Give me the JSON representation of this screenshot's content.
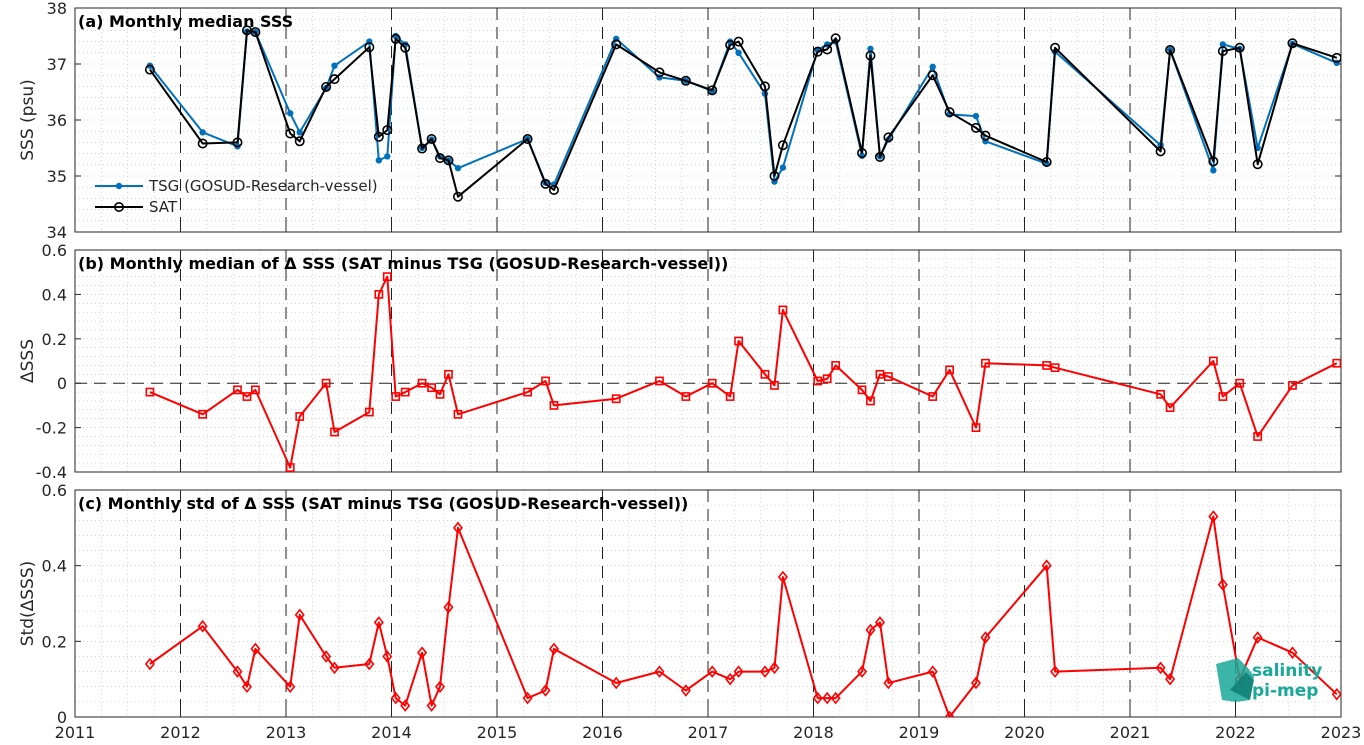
{
  "chart_data": [
    {
      "type": "line",
      "title": "(a) Monthly median SSS",
      "ylabel": "SSS (psu)",
      "ylim": [
        34,
        38
      ],
      "yticks": [
        34,
        35,
        36,
        37,
        38
      ],
      "xlim": [
        2011,
        2023
      ],
      "grid": true,
      "legend": "lower-left",
      "series": [
        {
          "name": "TSG (GOSUD-Research-vessel)",
          "color": "#0072BD",
          "marker": "dot",
          "x": [
            2011.71,
            2012.21,
            2012.54,
            2012.63,
            2012.71,
            2013.04,
            2013.13,
            2013.38,
            2013.46,
            2013.79,
            2013.88,
            2013.96,
            2014.04,
            2014.13,
            2014.29,
            2014.38,
            2014.46,
            2014.54,
            2014.63,
            2015.29,
            2015.46,
            2015.54,
            2016.13,
            2016.54,
            2016.79,
            2017.04,
            2017.21,
            2017.29,
            2017.54,
            2017.63,
            2017.71,
            2018.04,
            2018.13,
            2018.21,
            2018.46,
            2018.54,
            2018.63,
            2018.71,
            2019.13,
            2019.29,
            2019.54,
            2019.63,
            2020.21,
            2020.29,
            2021.29,
            2021.38,
            2021.79,
            2021.88,
            2022.04,
            2022.21,
            2022.54,
            2022.96
          ],
          "values": [
            36.97,
            35.78,
            35.53,
            37.58,
            37.57,
            36.12,
            35.78,
            36.57,
            36.97,
            37.4,
            35.28,
            35.35,
            37.5,
            37.35,
            35.5,
            35.65,
            35.35,
            35.28,
            35.14,
            35.66,
            34.88,
            34.85,
            37.45,
            36.76,
            36.7,
            36.52,
            37.4,
            37.2,
            36.47,
            34.9,
            35.15,
            37.25,
            37.35,
            37.4,
            35.36,
            37.27,
            35.35,
            35.65,
            36.95,
            36.1,
            36.07,
            35.62,
            35.22,
            37.22,
            35.55,
            37.25,
            35.1,
            37.35,
            37.27,
            35.5,
            37.36,
            37.02
          ]
        },
        {
          "name": "SAT",
          "color": "#000000",
          "marker": "circle",
          "x": [
            2011.71,
            2012.21,
            2012.54,
            2012.63,
            2012.71,
            2013.04,
            2013.13,
            2013.38,
            2013.46,
            2013.79,
            2013.88,
            2013.96,
            2014.04,
            2014.13,
            2014.29,
            2014.38,
            2014.46,
            2014.54,
            2014.63,
            2015.29,
            2015.46,
            2015.54,
            2016.13,
            2016.54,
            2016.79,
            2017.04,
            2017.21,
            2017.29,
            2017.54,
            2017.63,
            2017.71,
            2018.04,
            2018.13,
            2018.21,
            2018.46,
            2018.54,
            2018.63,
            2018.71,
            2019.13,
            2019.29,
            2019.54,
            2019.63,
            2020.21,
            2020.29,
            2021.29,
            2021.38,
            2021.79,
            2021.88,
            2022.04,
            2022.21,
            2022.54,
            2022.96
          ],
          "values": [
            36.9,
            35.58,
            35.6,
            37.6,
            37.57,
            35.76,
            35.62,
            36.59,
            36.73,
            37.3,
            35.7,
            35.82,
            37.45,
            37.29,
            35.49,
            35.66,
            35.32,
            35.28,
            34.63,
            35.66,
            34.86,
            34.75,
            37.35,
            36.85,
            36.7,
            36.53,
            37.34,
            37.4,
            36.6,
            35.0,
            35.55,
            37.22,
            37.26,
            37.46,
            35.41,
            37.15,
            35.34,
            35.69,
            36.8,
            36.14,
            35.86,
            35.72,
            35.25,
            37.29,
            35.44,
            37.25,
            35.26,
            37.23,
            37.29,
            35.21,
            37.37,
            37.11
          ]
        }
      ]
    },
    {
      "type": "line",
      "title": "(b) Monthly median of Δ SSS (SAT minus TSG (GOSUD-Research-vessel))",
      "ylabel": "ΔSSS",
      "ylim": [
        -0.4,
        0.6
      ],
      "yticks": [
        -0.4,
        -0.2,
        0,
        0.2,
        0.4,
        0.6
      ],
      "xlim": [
        2011,
        2023
      ],
      "grid": true,
      "zero_line": true,
      "series": [
        {
          "color": "#FF0000",
          "marker": "square",
          "x": [
            2011.71,
            2012.21,
            2012.54,
            2012.63,
            2012.71,
            2013.04,
            2013.13,
            2013.38,
            2013.46,
            2013.79,
            2013.88,
            2013.96,
            2014.04,
            2014.13,
            2014.29,
            2014.38,
            2014.46,
            2014.54,
            2014.63,
            2015.29,
            2015.46,
            2015.54,
            2016.13,
            2016.54,
            2016.79,
            2017.04,
            2017.21,
            2017.29,
            2017.54,
            2017.63,
            2017.71,
            2018.04,
            2018.13,
            2018.21,
            2018.46,
            2018.54,
            2018.63,
            2018.71,
            2019.13,
            2019.29,
            2019.54,
            2019.63,
            2020.21,
            2020.29,
            2021.29,
            2021.38,
            2021.79,
            2021.88,
            2022.04,
            2022.21,
            2022.54,
            2022.96
          ],
          "values": [
            -0.04,
            -0.14,
            -0.03,
            -0.06,
            -0.03,
            -0.38,
            -0.15,
            0.0,
            -0.22,
            -0.13,
            0.4,
            0.48,
            -0.06,
            -0.04,
            0.0,
            -0.02,
            -0.05,
            0.04,
            -0.14,
            -0.04,
            0.01,
            -0.1,
            -0.07,
            0.01,
            -0.06,
            0.0,
            -0.06,
            0.19,
            0.04,
            -0.01,
            0.33,
            0.01,
            0.02,
            0.08,
            -0.03,
            -0.08,
            0.04,
            0.03,
            -0.06,
            0.06,
            -0.2,
            0.09,
            0.08,
            0.07,
            -0.05,
            -0.11,
            0.1,
            -0.06,
            0.0,
            -0.24,
            -0.01,
            0.09
          ]
        }
      ]
    },
    {
      "type": "line",
      "title": "(c) Monthly std of Δ SSS (SAT minus TSG (GOSUD-Research-vessel))",
      "ylabel": "Std(ΔSSS)",
      "ylim": [
        0,
        0.6
      ],
      "yticks": [
        0,
        0.2,
        0.4,
        0.6
      ],
      "xlim": [
        2011,
        2023
      ],
      "xticks": [
        2011,
        2012,
        2013,
        2014,
        2015,
        2016,
        2017,
        2018,
        2019,
        2020,
        2021,
        2022,
        2023
      ],
      "grid": true,
      "series": [
        {
          "color": "#FF0000",
          "marker": "diamond",
          "x": [
            2011.71,
            2012.21,
            2012.54,
            2012.63,
            2012.71,
            2013.04,
            2013.13,
            2013.38,
            2013.46,
            2013.79,
            2013.88,
            2013.96,
            2014.04,
            2014.13,
            2014.29,
            2014.38,
            2014.46,
            2014.54,
            2014.63,
            2015.29,
            2015.46,
            2015.54,
            2016.13,
            2016.54,
            2016.79,
            2017.04,
            2017.21,
            2017.29,
            2017.54,
            2017.63,
            2017.71,
            2018.04,
            2018.13,
            2018.21,
            2018.46,
            2018.54,
            2018.63,
            2018.71,
            2019.13,
            2019.29,
            2019.54,
            2019.63,
            2020.21,
            2020.29,
            2021.29,
            2021.38,
            2021.79,
            2021.88,
            2022.04,
            2022.21,
            2022.54,
            2022.96
          ],
          "values": [
            0.14,
            0.24,
            0.12,
            0.08,
            0.18,
            0.08,
            0.27,
            0.16,
            0.13,
            0.14,
            0.25,
            0.16,
            0.05,
            0.03,
            0.17,
            0.03,
            0.08,
            0.29,
            0.5,
            0.05,
            0.07,
            0.18,
            0.09,
            0.12,
            0.07,
            0.12,
            0.1,
            0.12,
            0.12,
            0.13,
            0.37,
            0.05,
            0.05,
            0.05,
            0.12,
            0.23,
            0.25,
            0.09,
            0.12,
            0.0,
            0.09,
            0.21,
            0.4,
            0.12,
            0.13,
            0.1,
            0.53,
            0.35,
            0.1,
            0.21,
            0.17,
            0.06
          ]
        }
      ]
    }
  ],
  "logo": {
    "line1": "salinity",
    "line2": "pi-mep"
  },
  "colors": {
    "tsg": "#0072BD",
    "sat": "#000000",
    "delta": "#FF0000",
    "logo": "#1aa89a"
  }
}
